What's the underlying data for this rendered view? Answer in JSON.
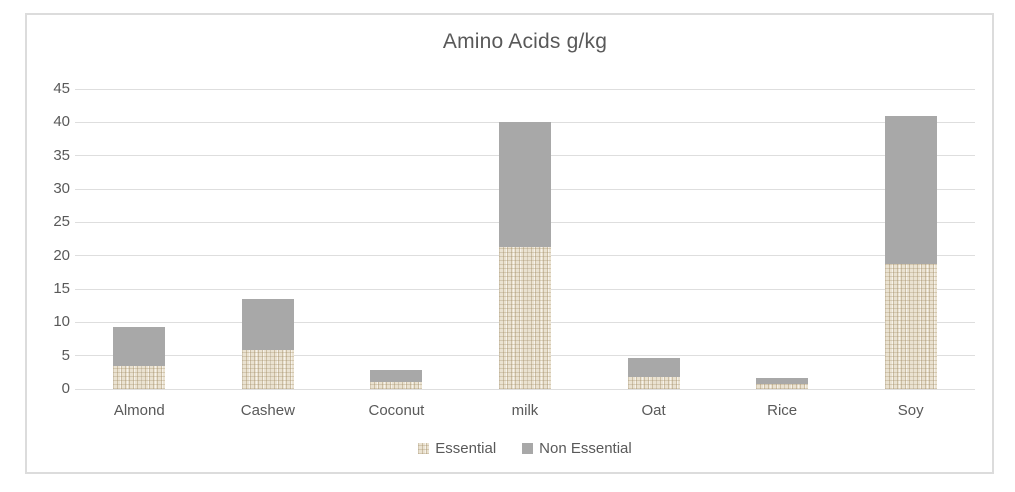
{
  "title": "Amino Acids g/kg",
  "colors": {
    "essential_base": "#eae2d1",
    "essential_weave": "#9e8860",
    "non_essential": "#a8a8a8",
    "text": "#595959",
    "gridline": "#dedede",
    "frame_border": "#dcdcdc",
    "background": "#ffffff"
  },
  "legend": {
    "items": [
      {
        "label": "Essential",
        "swatch": "essential-pattern-swatch"
      },
      {
        "label": "Non Essential",
        "swatch": "gray-swatch"
      }
    ],
    "position": "bottom-center"
  },
  "y_axis": {
    "min": 0,
    "max": 45,
    "step": 5,
    "tick_labels": [
      "45",
      "40",
      "35",
      "30",
      "25",
      "20",
      "15",
      "10",
      "5",
      "0"
    ]
  },
  "chart_data": {
    "type": "bar",
    "stacked": true,
    "title": "Amino Acids g/kg",
    "xlabel": "",
    "ylabel": "",
    "categories": [
      "Almond",
      "Cashew",
      "Coconut",
      "milk",
      "Oat",
      "Rice",
      "Soy"
    ],
    "series": [
      {
        "name": "Essential",
        "values": [
          3.4,
          5.8,
          1.0,
          21.3,
          1.8,
          0.7,
          18.8
        ]
      },
      {
        "name": "Non Essential",
        "values": [
          5.9,
          7.7,
          1.9,
          18.7,
          2.8,
          0.9,
          22.2
        ]
      }
    ],
    "totals": [
      9.3,
      13.5,
      2.9,
      40.0,
      4.6,
      1.6,
      41.0
    ],
    "ylim": [
      0,
      45
    ],
    "ytick_step": 5,
    "grid": true,
    "legend_position": "bottom"
  }
}
